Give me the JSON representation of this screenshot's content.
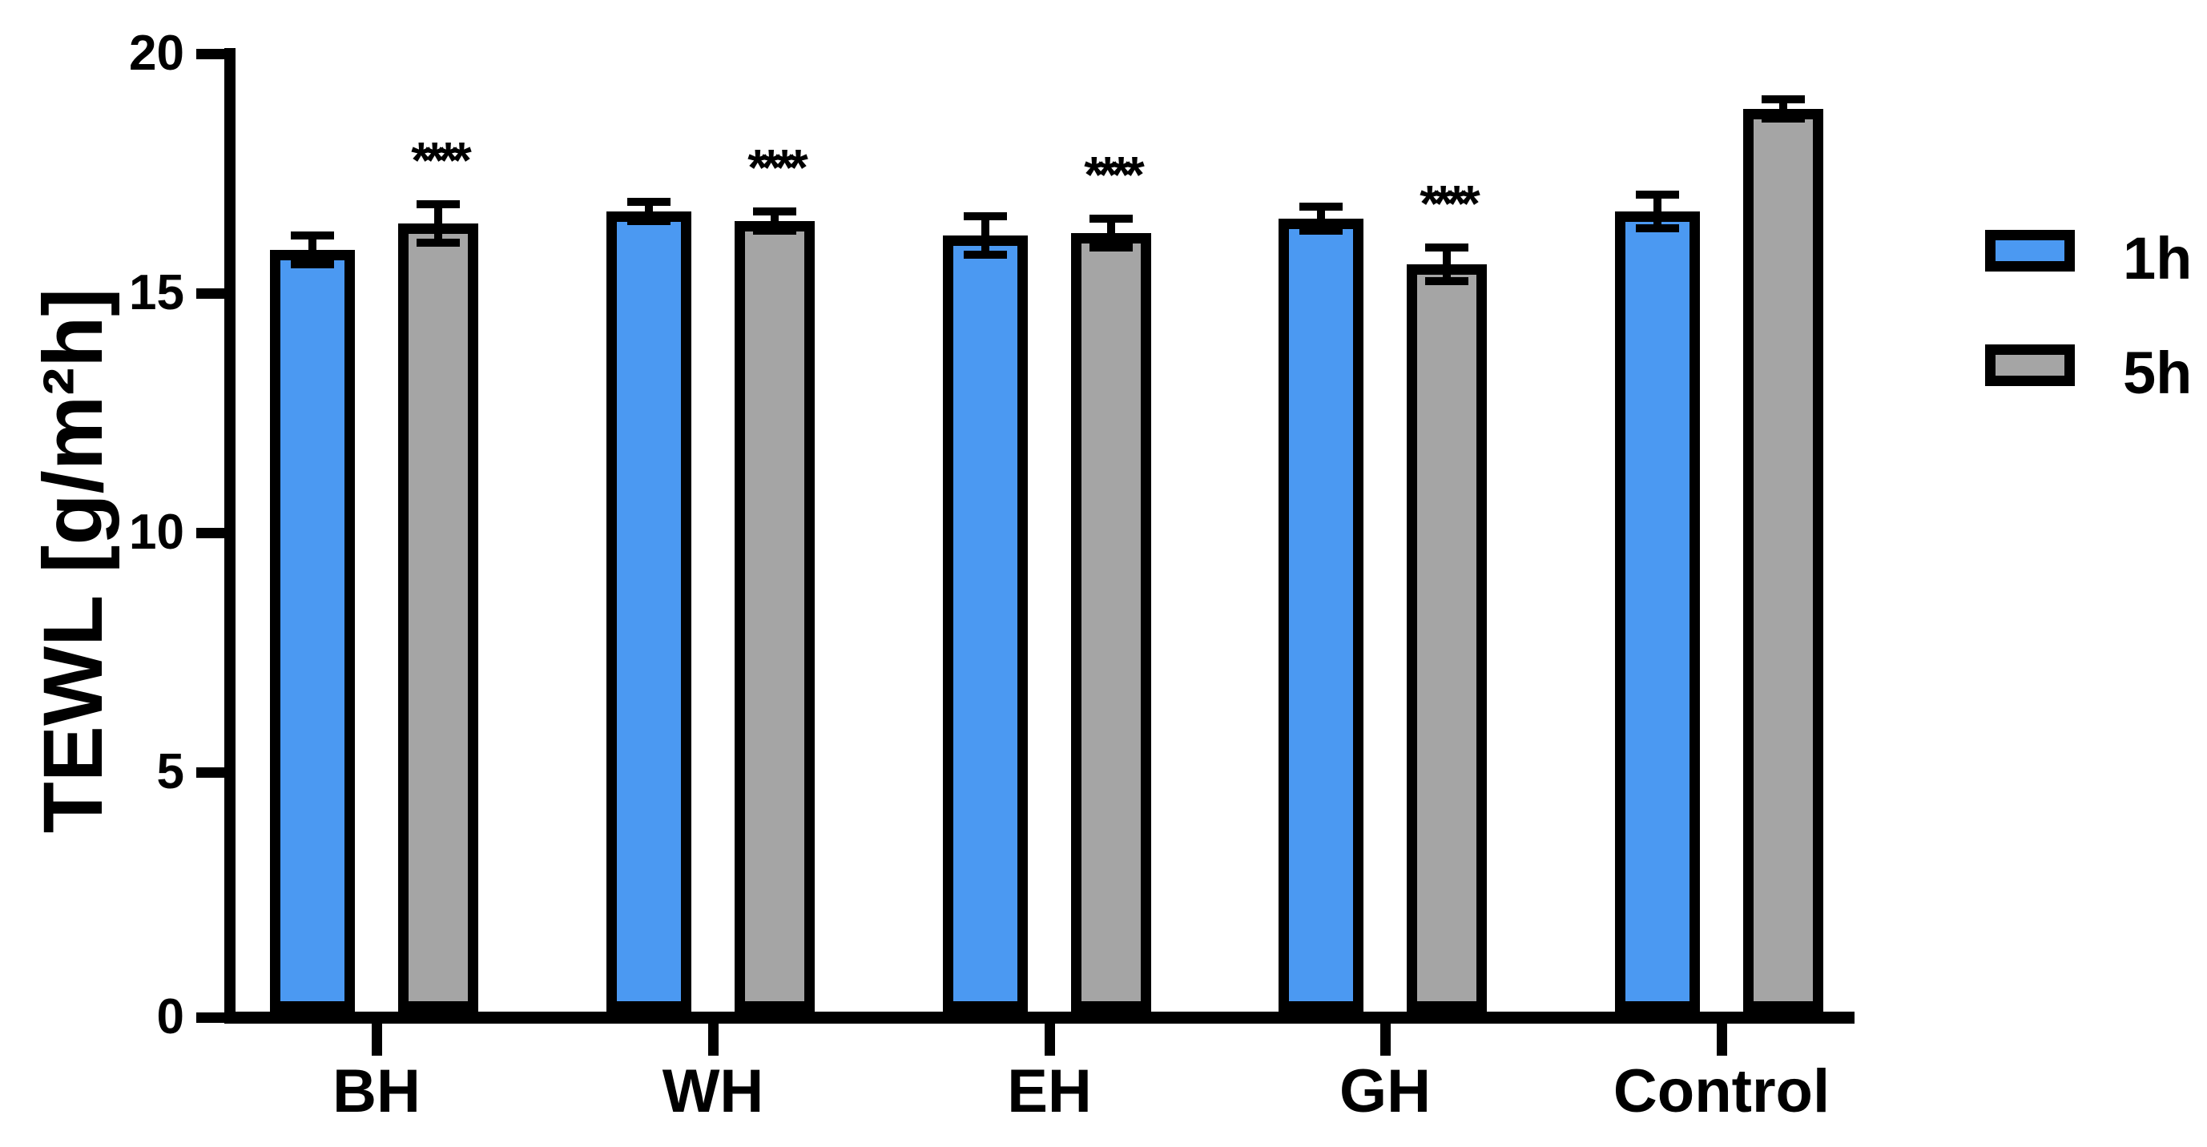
{
  "figure_title": "",
  "chart_data": {
    "type": "bar",
    "title": "",
    "ylabel": "TEWL [g/m²h]",
    "xlabel": "",
    "categories": [
      "BH",
      "WH",
      "EH",
      "GH",
      "Control"
    ],
    "series": [
      {
        "name": "1h",
        "color": "#4B99F2",
        "values": [
          15.9,
          16.7,
          16.2,
          16.55,
          16.7
        ],
        "sem": [
          0.3,
          0.2,
          0.4,
          0.25,
          0.35
        ]
      },
      {
        "name": "5h",
        "color": "#A5A5A5",
        "values": [
          16.45,
          16.5,
          16.25,
          15.6,
          18.85
        ],
        "sem": [
          0.4,
          0.2,
          0.3,
          0.35,
          0.2
        ]
      }
    ],
    "significance": {
      "symbol": "****",
      "on_series": "5h",
      "categories": [
        "BH",
        "WH",
        "EH",
        "GH"
      ]
    },
    "yticks": [
      0,
      5,
      10,
      15,
      20
    ],
    "ylim": [
      0,
      20
    ],
    "grid": false,
    "legend_position": "right",
    "bar_border_color": "#000000",
    "error_bars": "mean ± SEM, black caps",
    "background_color": "#ffffff",
    "axis_color": "#000000"
  },
  "legend": {
    "items": [
      {
        "label": "1h",
        "color": "#4B99F2"
      },
      {
        "label": "5h",
        "color": "#A5A5A5"
      }
    ]
  }
}
